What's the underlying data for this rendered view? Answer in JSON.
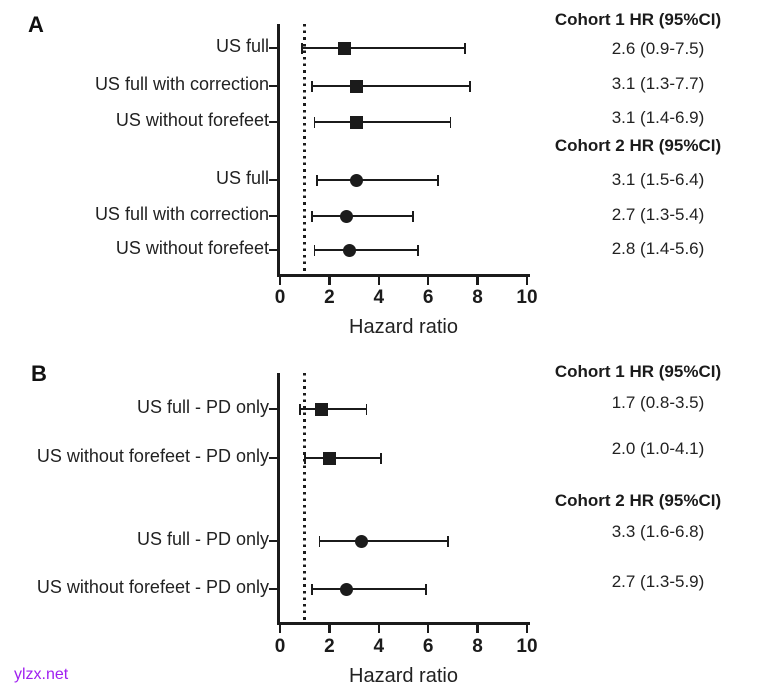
{
  "figure": {
    "ink_color": "#1b1b1b",
    "watermark": "ylzx.net",
    "watermark_color": "#A020F0"
  },
  "chart_data": [
    {
      "type": "forest",
      "panel_label": "A",
      "xlabel": "Hazard ratio",
      "xlim": [
        0,
        10
      ],
      "xticks": [
        "0",
        "2",
        "4",
        "6",
        "8",
        "10"
      ],
      "reference_line": 1,
      "grid": false,
      "groups": [
        {
          "heading": "Cohort 1 HR (95%CI)",
          "marker": "square",
          "rows": [
            {
              "label": "US full",
              "hr": 2.6,
              "lo": 0.9,
              "hi": 7.5,
              "ci_text": "2.6 (0.9-7.5)"
            },
            {
              "label": "US full with correction",
              "hr": 3.1,
              "lo": 1.3,
              "hi": 7.7,
              "ci_text": "3.1 (1.3-7.7)"
            },
            {
              "label": "US without forefeet",
              "hr": 3.1,
              "lo": 1.4,
              "hi": 6.9,
              "ci_text": "3.1 (1.4-6.9)"
            }
          ]
        },
        {
          "heading": "Cohort 2 HR (95%CI)",
          "marker": "circle",
          "rows": [
            {
              "label": "US full",
              "hr": 3.1,
              "lo": 1.5,
              "hi": 6.4,
              "ci_text": "3.1 (1.5-6.4)"
            },
            {
              "label": "US full with correction",
              "hr": 2.7,
              "lo": 1.3,
              "hi": 5.4,
              "ci_text": "2.7 (1.3-5.4)"
            },
            {
              "label": "US without forefeet",
              "hr": 2.8,
              "lo": 1.4,
              "hi": 5.6,
              "ci_text": "2.8 (1.4-5.6)"
            }
          ]
        }
      ]
    },
    {
      "type": "forest",
      "panel_label": "B",
      "xlabel": "Hazard ratio",
      "xlim": [
        0,
        10
      ],
      "xticks": [
        "0",
        "2",
        "4",
        "6",
        "8",
        "10"
      ],
      "reference_line": 1,
      "grid": false,
      "groups": [
        {
          "heading": "Cohort 1 HR (95%CI)",
          "marker": "square",
          "rows": [
            {
              "label": "US full - PD only",
              "hr": 1.7,
              "lo": 0.8,
              "hi": 3.5,
              "ci_text": "1.7 (0.8-3.5)"
            },
            {
              "label": "US without forefeet - PD only",
              "hr": 2.0,
              "lo": 1.0,
              "hi": 4.1,
              "ci_text": "2.0 (1.0-4.1)"
            }
          ]
        },
        {
          "heading": "Cohort 2 HR (95%CI)",
          "marker": "circle",
          "rows": [
            {
              "label": "US full - PD only",
              "hr": 3.3,
              "lo": 1.6,
              "hi": 6.8,
              "ci_text": "3.3 (1.6-6.8)"
            },
            {
              "label": "US without forefeet - PD only",
              "hr": 2.7,
              "lo": 1.3,
              "hi": 5.9,
              "ci_text": "2.7 (1.3-5.9)"
            }
          ]
        }
      ]
    }
  ]
}
